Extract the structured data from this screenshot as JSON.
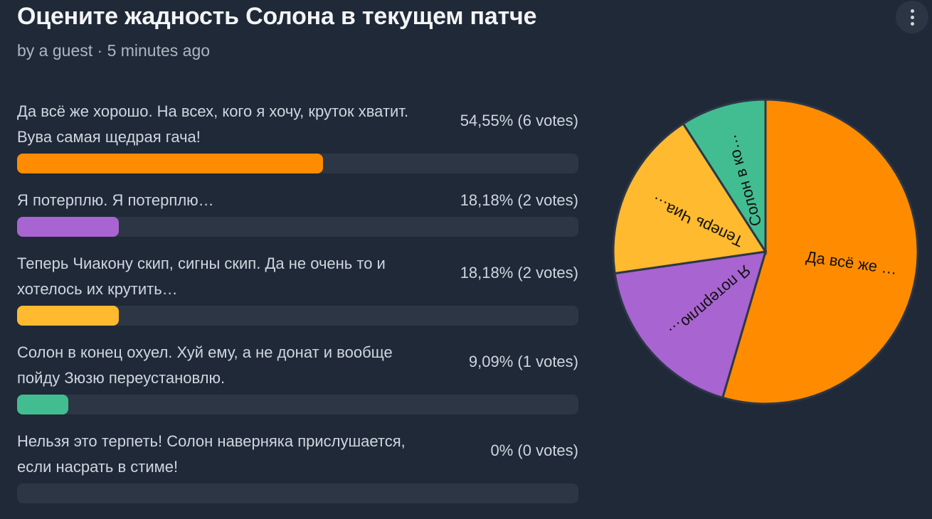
{
  "poll": {
    "title": "Оцените жадность Солона в текущем патче",
    "byline": "by a guest · 5 minutes ago",
    "menu_icon": "kebab-menu-icon"
  },
  "options": [
    {
      "label": "Да всё же хорошо. На всех, кого я хочу, круток хватит. Вува самая щедрая гача!",
      "percent_text": "54,55% (6 votes)",
      "percent": 54.55,
      "votes": 6,
      "color": "#ff8c00"
    },
    {
      "label": "Я потерплю. Я потерплю…",
      "percent_text": "18,18% (2 votes)",
      "percent": 18.18,
      "votes": 2,
      "color": "#a864d0"
    },
    {
      "label": "Теперь Чиакону скип, сигны скип. Да не очень то и хотелось их крутить…",
      "percent_text": "18,18% (2 votes)",
      "percent": 18.18,
      "votes": 2,
      "color": "#ffba2f"
    },
    {
      "label": "Солон в конец охуел. Хуй ему, а не донат и вообще пойду Зюзю переустановлю.",
      "percent_text": "9,09% (1 votes)",
      "percent": 9.09,
      "votes": 1,
      "color": "#42bd91"
    },
    {
      "label": "Нельзя это терпеть! Солон наверняка прислушается, если насрать в стиме!",
      "percent_text": "0% (0 votes)",
      "percent": 0,
      "votes": 0,
      "color": "#6b7280"
    }
  ],
  "chart_data": {
    "type": "pie",
    "slices": [
      {
        "label": "Да всё же …",
        "value": 6,
        "color": "#ff8c00"
      },
      {
        "label": "Я потерплю…",
        "value": 2,
        "color": "#a864d0"
      },
      {
        "label": "Теперь Чиа…",
        "value": 2,
        "color": "#ffba2f"
      },
      {
        "label": "Солон в ко…",
        "value": 1,
        "color": "#42bd91"
      }
    ]
  }
}
